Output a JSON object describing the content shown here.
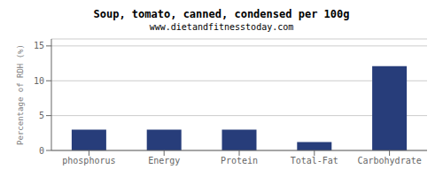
{
  "chart_data": {
    "type": "bar",
    "title": "Soup, tomato, canned, condensed per 100g",
    "subtitle": "www.dietandfitnesstoday.com",
    "categories": [
      "phosphorus",
      "Energy",
      "Protein",
      "Total-Fat",
      "Carbohydrate"
    ],
    "values": [
      3.0,
      3.0,
      3.0,
      1.2,
      12.1
    ],
    "color": "#273d7a",
    "ylabel": "Percentage of RDH (%)",
    "ylim": [
      0,
      16
    ],
    "yticks": [
      0,
      5,
      10,
      15
    ],
    "grid": true
  }
}
